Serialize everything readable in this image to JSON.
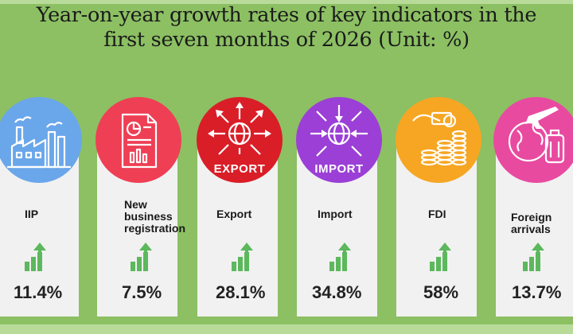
{
  "title": {
    "line1": "Year-on-year growth rates of  key indicators in  the",
    "line2": "first seven months of 2026 (Unit: %)"
  },
  "indicators": [
    {
      "label_lines": [
        "IIP"
      ],
      "value": "11.4%",
      "icon": "factory-icon",
      "color": "#6aa6ea"
    },
    {
      "label_lines": [
        "New",
        "business",
        "registration"
      ],
      "value": "7.5%",
      "icon": "document-chart-icon",
      "color": "#ee3f55"
    },
    {
      "label_lines": [
        "Export"
      ],
      "value": "28.1%",
      "icon": "export-globe-icon",
      "color": "#d91e27",
      "badge": "EXPORT"
    },
    {
      "label_lines": [
        "Import"
      ],
      "value": "34.8%",
      "icon": "import-globe-icon",
      "color": "#9b3fd6",
      "badge": "IMPORT"
    },
    {
      "label_lines": [
        "FDI"
      ],
      "value": "58%",
      "icon": "money-coins-icon",
      "color": "#f6a623"
    },
    {
      "label_lines": [
        "Foreign",
        "arrivals"
      ],
      "value": "13.7%",
      "icon": "travel-globe-icon",
      "color": "#e84aa0"
    }
  ],
  "colors": {
    "background": "#8cc063",
    "band": "#b9db9a",
    "card": "#f1f1f1",
    "growth_arrow": "#5cb85c"
  }
}
